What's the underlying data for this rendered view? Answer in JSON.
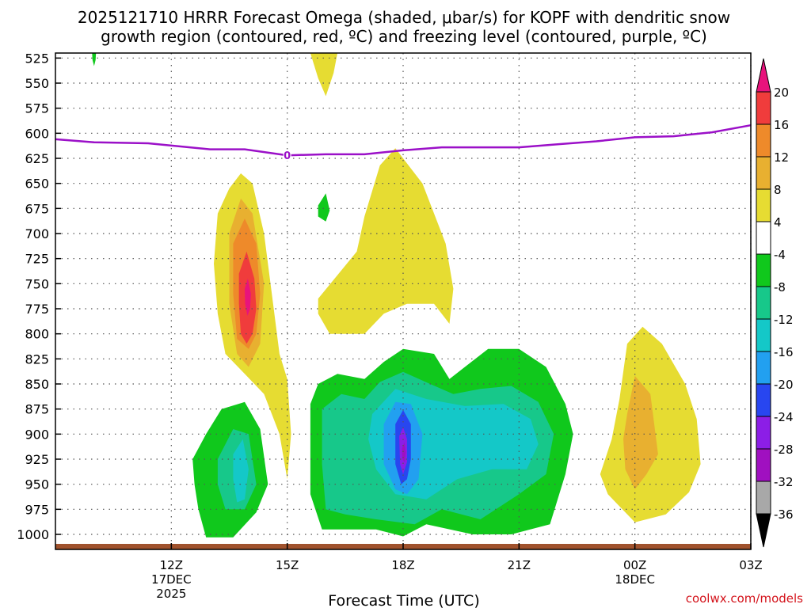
{
  "chart_data": {
    "type": "heatmap",
    "title": "2025121710 HRRR Forecast Omega (shaded, μbar/s) for KOPF with dendritic snow",
    "subtitle": "growth region (contoured, red, ºC) and freezing level (contoured, purple, ºC)",
    "xlabel": "Forecast Time (UTC)",
    "ylabel": "",
    "watermark": "coolwx.com/models",
    "x_range_hours": [
      9.0,
      27.0
    ],
    "y_range_hpa": [
      1015,
      520
    ],
    "y_ticks": [
      525,
      550,
      575,
      600,
      625,
      650,
      675,
      700,
      725,
      750,
      775,
      800,
      825,
      850,
      875,
      900,
      925,
      950,
      975,
      1000
    ],
    "x_ticks": [
      {
        "hour": 12,
        "label": "12Z",
        "sub1": "17DEC",
        "sub2": "2025"
      },
      {
        "hour": 15,
        "label": "15Z",
        "sub1": "",
        "sub2": ""
      },
      {
        "hour": 18,
        "label": "18Z",
        "sub1": "",
        "sub2": ""
      },
      {
        "hour": 21,
        "label": "21Z",
        "sub1": "",
        "sub2": ""
      },
      {
        "hour": 24,
        "label": "00Z",
        "sub1": "18DEC",
        "sub2": ""
      },
      {
        "hour": 27,
        "label": "03Z",
        "sub1": "",
        "sub2": ""
      }
    ],
    "grid": true,
    "colorbar": {
      "levels": [
        -36,
        -32,
        -28,
        -24,
        -20,
        -16,
        -12,
        -8,
        -4,
        4,
        8,
        12,
        16,
        20
      ],
      "labels": [
        "20",
        "16",
        "12",
        "8",
        "4",
        "-4",
        "-8",
        "-12",
        "-16",
        "-20",
        "-24",
        "-28",
        "-32",
        "-36"
      ],
      "bins_top_to_bottom": [
        "#e8137c",
        "#f03c3c",
        "#ee8a2a",
        "#e8b030",
        "#e6dc32",
        "#ffffff",
        "#10c81c",
        "#17c88a",
        "#14c8c8",
        "#22a0f0",
        "#2846f0",
        "#8c1ee6",
        "#a010c0",
        "#a8a8a8",
        "#000000"
      ]
    },
    "freezing_level": {
      "value_label": "0",
      "label_hour": 15.0,
      "hours": [
        9.0,
        10.0,
        11.4,
        13.0,
        13.9,
        15.0,
        16.0,
        17.0,
        18.0,
        19.0,
        20.0,
        21.0,
        22.0,
        23.0,
        24.0,
        25.0,
        26.0,
        27.0
      ],
      "pressure_hpa": [
        606,
        609,
        610,
        616,
        616,
        622,
        621,
        621,
        617,
        614,
        614,
        614,
        611,
        608,
        604,
        603,
        599,
        592
      ]
    },
    "omega_regions": [
      {
        "name": "upward-motion-yellow-15z-left",
        "color": "#e6dc32",
        "value": 4,
        "points": [
          [
            13.2,
            680
          ],
          [
            13.5,
            655
          ],
          [
            13.8,
            640
          ],
          [
            14.1,
            650
          ],
          [
            14.4,
            700
          ],
          [
            14.6,
            760
          ],
          [
            14.8,
            820
          ],
          [
            15.0,
            845
          ],
          [
            15.1,
            900
          ],
          [
            15.0,
            945
          ],
          [
            14.8,
            900
          ],
          [
            14.4,
            860
          ],
          [
            13.9,
            840
          ],
          [
            13.4,
            820
          ],
          [
            13.2,
            780
          ],
          [
            13.1,
            730
          ]
        ]
      },
      {
        "name": "upward-motion-orange-light",
        "color": "#e8b030",
        "value": 8,
        "points": [
          [
            13.5,
            700
          ],
          [
            13.8,
            665
          ],
          [
            14.1,
            680
          ],
          [
            14.4,
            750
          ],
          [
            14.3,
            810
          ],
          [
            14.0,
            833
          ],
          [
            13.7,
            820
          ],
          [
            13.5,
            770
          ]
        ]
      },
      {
        "name": "upward-motion-orange",
        "color": "#ee8a2a",
        "value": 12,
        "points": [
          [
            13.6,
            710
          ],
          [
            13.9,
            685
          ],
          [
            14.2,
            710
          ],
          [
            14.3,
            760
          ],
          [
            14.2,
            800
          ],
          [
            14.0,
            815
          ],
          [
            13.7,
            805
          ],
          [
            13.6,
            760
          ]
        ]
      },
      {
        "name": "upward-motion-red",
        "color": "#f03c3c",
        "value": 16,
        "points": [
          [
            13.75,
            740
          ],
          [
            13.95,
            718
          ],
          [
            14.15,
            745
          ],
          [
            14.2,
            775
          ],
          [
            14.1,
            800
          ],
          [
            13.95,
            810
          ],
          [
            13.8,
            800
          ],
          [
            13.75,
            770
          ]
        ]
      },
      {
        "name": "upward-motion-pink",
        "color": "#e8137c",
        "value": 20,
        "points": [
          [
            13.9,
            755
          ],
          [
            13.98,
            745
          ],
          [
            14.06,
            760
          ],
          [
            14.04,
            775
          ],
          [
            13.97,
            782
          ],
          [
            13.91,
            770
          ]
        ]
      },
      {
        "name": "upward-motion-yellow-top",
        "color": "#e6dc32",
        "value": 4,
        "points": [
          [
            15.6,
            520
          ],
          [
            16.3,
            520
          ],
          [
            16.2,
            540
          ],
          [
            16.0,
            563
          ],
          [
            15.8,
            545
          ]
        ]
      },
      {
        "name": "upward-motion-yellow-18z",
        "color": "#e6dc32",
        "value": 4,
        "points": [
          [
            15.8,
            765
          ],
          [
            16.8,
            718
          ],
          [
            17.0,
            683
          ],
          [
            17.4,
            632
          ],
          [
            17.8,
            615
          ],
          [
            18.5,
            650
          ],
          [
            19.1,
            710
          ],
          [
            19.3,
            755
          ],
          [
            19.2,
            790
          ],
          [
            18.8,
            770
          ],
          [
            18.1,
            770
          ],
          [
            17.5,
            780
          ],
          [
            17.0,
            800
          ],
          [
            16.1,
            800
          ],
          [
            15.8,
            780
          ]
        ]
      },
      {
        "name": "downward-motion-green-small-top",
        "color": "#10c81c",
        "value": -4,
        "points": [
          [
            9.95,
            520
          ],
          [
            10.05,
            520
          ],
          [
            10.04,
            527
          ],
          [
            10.0,
            533
          ],
          [
            9.96,
            527
          ]
        ]
      },
      {
        "name": "downward-motion-green-small",
        "color": "#10c81c",
        "value": -4,
        "points": [
          [
            15.8,
            672
          ],
          [
            16.0,
            660
          ],
          [
            16.1,
            677
          ],
          [
            16.0,
            688
          ],
          [
            15.8,
            683
          ]
        ]
      },
      {
        "name": "downward-motion-green-left",
        "color": "#10c81c",
        "value": -4,
        "points": [
          [
            12.55,
            925
          ],
          [
            12.9,
            900
          ],
          [
            13.3,
            875
          ],
          [
            13.9,
            868
          ],
          [
            14.3,
            895
          ],
          [
            14.5,
            950
          ],
          [
            14.2,
            978
          ],
          [
            13.6,
            1003
          ],
          [
            12.9,
            1003
          ],
          [
            12.7,
            975
          ],
          [
            12.6,
            950
          ]
        ]
      },
      {
        "name": "downward-motion-teal-left",
        "color": "#17c88a",
        "value": -8,
        "points": [
          [
            13.2,
            925
          ],
          [
            13.6,
            895
          ],
          [
            14.0,
            900
          ],
          [
            14.2,
            950
          ],
          [
            13.9,
            975
          ],
          [
            13.4,
            975
          ],
          [
            13.2,
            950
          ]
        ]
      },
      {
        "name": "downward-motion-cyan-left",
        "color": "#14c8c8",
        "value": -12,
        "points": [
          [
            13.6,
            920
          ],
          [
            13.85,
            905
          ],
          [
            14.0,
            935
          ],
          [
            13.9,
            965
          ],
          [
            13.7,
            968
          ],
          [
            13.6,
            945
          ]
        ]
      },
      {
        "name": "downward-motion-green-main",
        "color": "#10c81c",
        "value": -4,
        "points": [
          [
            15.6,
            870
          ],
          [
            15.8,
            850
          ],
          [
            16.3,
            840
          ],
          [
            17.0,
            845
          ],
          [
            17.5,
            828
          ],
          [
            18.0,
            815
          ],
          [
            18.8,
            820
          ],
          [
            19.2,
            845
          ],
          [
            19.6,
            833
          ],
          [
            20.2,
            815
          ],
          [
            21.0,
            815
          ],
          [
            21.7,
            833
          ],
          [
            22.2,
            870
          ],
          [
            22.4,
            900
          ],
          [
            22.2,
            940
          ],
          [
            21.8,
            990
          ],
          [
            20.8,
            1000
          ],
          [
            19.8,
            1000
          ],
          [
            18.6,
            990
          ],
          [
            18.0,
            1002
          ],
          [
            17.3,
            995
          ],
          [
            16.5,
            995
          ],
          [
            15.9,
            995
          ],
          [
            15.6,
            960
          ],
          [
            15.6,
            900
          ]
        ]
      },
      {
        "name": "downward-motion-teal-main",
        "color": "#17c88a",
        "value": -8,
        "points": [
          [
            15.9,
            875
          ],
          [
            16.4,
            860
          ],
          [
            17.0,
            865
          ],
          [
            17.4,
            848
          ],
          [
            18.0,
            838
          ],
          [
            18.7,
            850
          ],
          [
            19.3,
            860
          ],
          [
            20.0,
            855
          ],
          [
            20.8,
            852
          ],
          [
            21.5,
            868
          ],
          [
            21.9,
            900
          ],
          [
            21.7,
            940
          ],
          [
            21.0,
            960
          ],
          [
            20.0,
            985
          ],
          [
            19.0,
            975
          ],
          [
            18.3,
            990
          ],
          [
            17.3,
            985
          ],
          [
            16.5,
            980
          ],
          [
            16.0,
            975
          ],
          [
            15.9,
            930
          ]
        ]
      },
      {
        "name": "downward-motion-cyan-main",
        "color": "#14c8c8",
        "value": -12,
        "points": [
          [
            17.2,
            880
          ],
          [
            17.8,
            855
          ],
          [
            18.6,
            865
          ],
          [
            19.6,
            872
          ],
          [
            20.6,
            870
          ],
          [
            21.3,
            885
          ],
          [
            21.5,
            910
          ],
          [
            21.2,
            935
          ],
          [
            20.3,
            935
          ],
          [
            19.4,
            945
          ],
          [
            18.6,
            965
          ],
          [
            17.8,
            960
          ],
          [
            17.3,
            935
          ],
          [
            17.1,
            905
          ]
        ]
      },
      {
        "name": "downward-motion-blue",
        "color": "#22a0f0",
        "value": -16,
        "points": [
          [
            17.5,
            890
          ],
          [
            17.8,
            868
          ],
          [
            18.2,
            870
          ],
          [
            18.5,
            900
          ],
          [
            18.4,
            945
          ],
          [
            18.1,
            960
          ],
          [
            17.8,
            955
          ],
          [
            17.5,
            930
          ]
        ]
      },
      {
        "name": "downward-motion-darkblue",
        "color": "#2846f0",
        "value": -20,
        "points": [
          [
            17.8,
            890
          ],
          [
            18.0,
            876
          ],
          [
            18.2,
            890
          ],
          [
            18.2,
            925
          ],
          [
            18.1,
            945
          ],
          [
            17.95,
            950
          ],
          [
            17.8,
            930
          ]
        ]
      },
      {
        "name": "downward-motion-purple",
        "color": "#8c1ee6",
        "value": -24,
        "points": [
          [
            17.9,
            902
          ],
          [
            18.0,
            893
          ],
          [
            18.1,
            905
          ],
          [
            18.1,
            928
          ],
          [
            18.0,
            940
          ],
          [
            17.92,
            930
          ]
        ]
      },
      {
        "name": "downward-motion-magenta",
        "color": "#a010c0",
        "value": -28,
        "points": [
          [
            17.97,
            915
          ],
          [
            18.03,
            908
          ],
          [
            18.07,
            918
          ],
          [
            18.04,
            928
          ],
          [
            17.98,
            925
          ]
        ]
      },
      {
        "name": "upward-motion-yellow-right",
        "color": "#e6dc32",
        "value": 4,
        "points": [
          [
            23.8,
            810
          ],
          [
            24.2,
            793
          ],
          [
            24.7,
            810
          ],
          [
            25.3,
            850
          ],
          [
            25.6,
            885
          ],
          [
            25.7,
            930
          ],
          [
            25.4,
            958
          ],
          [
            24.8,
            980
          ],
          [
            24.0,
            988
          ],
          [
            23.3,
            960
          ],
          [
            23.1,
            940
          ],
          [
            23.4,
            905
          ],
          [
            23.6,
            865
          ]
        ]
      },
      {
        "name": "upward-motion-orange-right",
        "color": "#e8b030",
        "value": 8,
        "points": [
          [
            23.8,
            880
          ],
          [
            24.0,
            842
          ],
          [
            24.4,
            860
          ],
          [
            24.6,
            920
          ],
          [
            24.3,
            940
          ],
          [
            24.0,
            955
          ],
          [
            23.75,
            935
          ],
          [
            23.7,
            905
          ]
        ]
      }
    ],
    "ground_band_color": "#a0522d"
  }
}
